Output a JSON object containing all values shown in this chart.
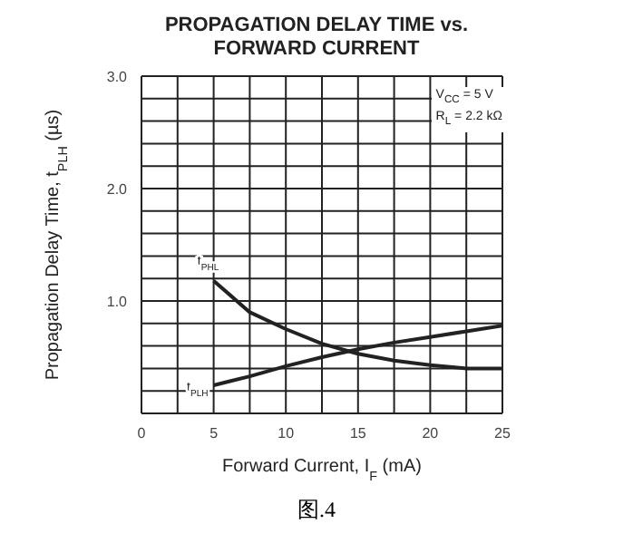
{
  "chart_data": {
    "type": "line",
    "title": "PROPAGATION DELAY TIME vs.\nFORWARD CURRENT",
    "xlabel": "Forward Current, I$_{F}$  (mA)",
    "ylabel": "Propagation Delay Time, t$_{PLH}$ (µs)",
    "x": [
      5,
      7.5,
      10,
      12.5,
      15,
      17.5,
      20,
      22.5,
      25
    ],
    "series": [
      {
        "name": "t$_{PHL}$",
        "color": "#222222",
        "values": [
          1.18,
          0.9,
          0.75,
          0.62,
          0.53,
          0.47,
          0.43,
          0.4,
          0.4
        ]
      },
      {
        "name": "t$_{PLH}$",
        "color": "#222222",
        "values": [
          0.25,
          0.33,
          0.42,
          0.5,
          0.57,
          0.63,
          0.68,
          0.73,
          0.78
        ]
      }
    ],
    "xlim": [
      0,
      25
    ],
    "ylim": [
      0,
      3
    ],
    "xticks": [
      0,
      {
        "value": 2.5,
        "label": null
      },
      5,
      {
        "value": 7.5,
        "label": null
      },
      10,
      {
        "value": 12.5,
        "label": null
      },
      15,
      {
        "value": 17.5,
        "label": null
      },
      20,
      {
        "value": 22.5,
        "label": null
      },
      25
    ],
    "yticks": [
      {
        "value": 0,
        "label": null
      },
      {
        "value": 0.2,
        "label": null
      },
      {
        "value": 0.4,
        "label": null
      },
      {
        "value": 0.6,
        "label": null
      },
      {
        "value": 0.8,
        "label": null
      },
      {
        "value": 1,
        "label": "1.0"
      },
      {
        "value": 1.2,
        "label": null
      },
      {
        "value": 1.4,
        "label": null
      },
      {
        "value": 1.6,
        "label": null
      },
      {
        "value": 1.8,
        "label": null
      },
      {
        "value": 2,
        "label": "2.0"
      },
      {
        "value": 2.2,
        "label": null
      },
      {
        "value": 2.4,
        "label": null
      },
      {
        "value": 2.6,
        "label": null
      },
      {
        "value": 2.8,
        "label": null
      },
      {
        "value": 3,
        "label": "3.0"
      }
    ],
    "annotations": [
      "V$_{CC}$ = 5 V",
      "R$_{L}$ = 2.2 kΩ",
      "图.4"
    ],
    "grid": true,
    "legend": false,
    "marker": "none",
    "line_style": "solid"
  }
}
